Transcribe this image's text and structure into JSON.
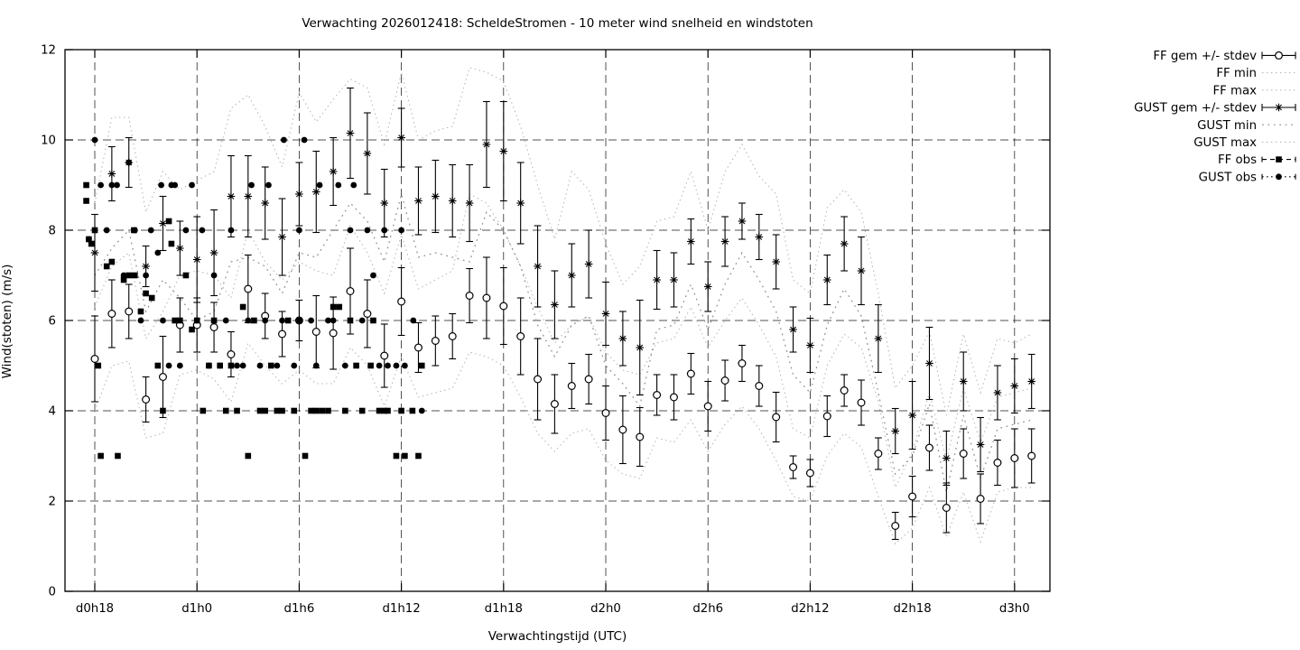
{
  "chart_data": {
    "type": "line",
    "subtype": "errorbar-forecast-plume-with-observations",
    "title": "Verwachting 2026012418: ScheldeStromen - 10 meter wind snelheid en windstoten",
    "xlabel": "Verwachtingstijd (UTC)",
    "ylabel": "Wind(stoten) (m/s)",
    "ylim": [
      0,
      12
    ],
    "yticks": [
      0,
      2,
      4,
      6,
      8,
      10,
      12
    ],
    "xtick_hours": [
      0,
      6,
      12,
      18,
      24,
      30,
      36,
      42,
      48,
      54
    ],
    "xtick_labels": [
      "d0h18",
      "d1h0",
      "d1h6",
      "d1h12",
      "d1h18",
      "d2h0",
      "d2h6",
      "d2h12",
      "d2h18",
      "d3h0"
    ],
    "grid": true,
    "legend_position": "outside-top-right",
    "colors": {
      "foreground": "#000000",
      "envelope_light": "#b5b5b5",
      "envelope_dark": "#8c8c8c"
    },
    "legend": [
      {
        "label": "FF gem +/- stdev",
        "style": "errorbar-open-circle"
      },
      {
        "label": "FF min",
        "style": "dots-light"
      },
      {
        "label": "FF max",
        "style": "dots-light"
      },
      {
        "label": "GUST gem +/- stdev",
        "style": "errorbar-star"
      },
      {
        "label": "GUST min",
        "style": "dots-dark"
      },
      {
        "label": "GUST max",
        "style": "dots-light"
      },
      {
        "label": "FF obs",
        "style": "dash-square"
      },
      {
        "label": "GUST obs",
        "style": "dots-circle"
      }
    ],
    "hours_start": 0,
    "hours_step": 1,
    "series": {
      "ff_gem": {
        "mean": [
          5.15,
          6.15,
          6.2,
          4.25,
          4.75,
          5.9,
          5.9,
          5.85,
          5.25,
          6.7,
          6.1,
          5.7,
          6.0,
          5.75,
          5.72,
          6.65,
          6.15,
          5.22,
          6.42,
          5.4,
          5.55,
          5.65,
          6.55,
          6.5,
          6.32,
          5.65,
          4.7,
          4.15,
          4.55,
          4.7,
          3.95,
          3.58,
          3.42,
          4.35,
          4.3,
          4.82,
          4.1,
          4.67,
          5.05,
          4.55,
          3.86,
          2.75,
          2.62,
          3.88,
          4.45,
          4.18,
          3.05,
          1.45,
          2.1,
          3.18,
          1.85,
          3.05,
          2.05,
          2.85,
          2.95,
          3.0
        ],
        "stdev": [
          0.95,
          0.75,
          0.6,
          0.5,
          0.9,
          0.6,
          0.6,
          0.55,
          0.5,
          0.75,
          0.5,
          0.5,
          0.45,
          0.8,
          0.8,
          0.95,
          0.75,
          0.7,
          0.75,
          0.55,
          0.55,
          0.5,
          0.6,
          0.9,
          0.85,
          0.85,
          0.9,
          0.65,
          0.5,
          0.55,
          0.6,
          0.75,
          0.65,
          0.45,
          0.5,
          0.45,
          0.55,
          0.45,
          0.4,
          0.45,
          0.55,
          0.25,
          0.3,
          0.45,
          0.35,
          0.5,
          0.35,
          0.3,
          0.45,
          0.5,
          0.55,
          0.55,
          0.55,
          0.5,
          0.65,
          0.6
        ]
      },
      "gust_gem": {
        "mean": [
          7.5,
          9.25,
          9.5,
          7.2,
          8.15,
          7.6,
          7.35,
          7.5,
          8.75,
          8.75,
          8.6,
          7.85,
          8.8,
          8.85,
          9.3,
          10.15,
          9.7,
          8.6,
          10.05,
          8.65,
          8.75,
          8.65,
          8.6,
          9.9,
          9.75,
          8.6,
          7.2,
          6.35,
          7.0,
          7.25,
          6.15,
          5.6,
          5.4,
          6.9,
          6.9,
          7.75,
          6.75,
          7.75,
          8.2,
          7.85,
          7.3,
          5.8,
          5.45,
          6.9,
          7.7,
          7.1,
          5.6,
          3.55,
          3.9,
          5.05,
          2.95,
          4.65,
          3.25,
          4.4,
          4.55,
          4.65
        ],
        "stdev": [
          0.85,
          0.6,
          0.55,
          0.45,
          0.6,
          0.6,
          0.95,
          0.95,
          0.9,
          0.9,
          0.8,
          0.85,
          0.7,
          0.9,
          0.75,
          1.0,
          0.9,
          0.75,
          0.65,
          0.75,
          0.8,
          0.8,
          0.85,
          0.95,
          1.1,
          0.9,
          0.9,
          0.75,
          0.7,
          0.75,
          0.7,
          0.6,
          1.05,
          0.65,
          0.6,
          0.5,
          0.55,
          0.55,
          0.4,
          0.5,
          0.6,
          0.5,
          0.6,
          0.55,
          0.6,
          0.75,
          0.75,
          0.5,
          0.75,
          0.8,
          0.6,
          0.65,
          0.6,
          0.6,
          0.6,
          0.6
        ]
      },
      "ff_min": [
        4.0,
        5.0,
        5.1,
        3.4,
        3.5,
        4.8,
        4.9,
        4.7,
        4.2,
        5.5,
        5.0,
        4.6,
        4.9,
        4.6,
        4.6,
        5.4,
        5.0,
        4.1,
        5.2,
        4.3,
        4.4,
        4.5,
        5.3,
        5.2,
        5.0,
        4.3,
        3.5,
        3.1,
        3.5,
        3.6,
        2.9,
        2.6,
        2.5,
        3.4,
        3.3,
        3.8,
        3.1,
        3.7,
        4.1,
        3.6,
        2.9,
        2.1,
        2.0,
        3.0,
        3.5,
        3.2,
        2.1,
        1.05,
        1.4,
        2.3,
        1.2,
        2.2,
        1.1,
        2.2,
        2.3,
        2.3
      ],
      "ff_max": [
        6.3,
        7.2,
        7.5,
        5.6,
        6.2,
        7.0,
        7.1,
        7.0,
        6.5,
        8.0,
        7.3,
        6.9,
        7.3,
        7.1,
        7.0,
        8.1,
        7.5,
        6.6,
        7.9,
        6.7,
        6.9,
        7.1,
        8.8,
        8.6,
        8.0,
        7.2,
        6.3,
        5.5,
        5.9,
        6.1,
        5.3,
        4.9,
        4.8,
        5.5,
        5.6,
        6.3,
        5.4,
        6.0,
        6.5,
        5.9,
        5.2,
        3.6,
        3.4,
        5.0,
        5.7,
        5.4,
        4.2,
        2.3,
        3.1,
        4.4,
        2.9,
        4.5,
        3.3,
        4.3,
        4.4,
        4.5
      ],
      "gust_min": [
        7.0,
        7.6,
        8.0,
        6.2,
        6.9,
        6.5,
        6.0,
        6.2,
        7.3,
        7.4,
        7.2,
        6.6,
        7.5,
        7.4,
        8.0,
        8.6,
        8.2,
        7.3,
        8.8,
        7.4,
        7.5,
        7.4,
        7.3,
        8.4,
        8.0,
        7.2,
        5.9,
        5.2,
        5.9,
        6.1,
        5.0,
        4.6,
        4.1,
        5.8,
        5.9,
        6.8,
        5.8,
        6.8,
        7.5,
        6.9,
        6.2,
        4.8,
        4.4,
        5.9,
        6.7,
        6.1,
        4.4,
        2.6,
        3.0,
        4.15,
        2.2,
        3.9,
        2.5,
        3.6,
        3.7,
        3.8
      ],
      "gust_max": [
        8.6,
        10.5,
        10.5,
        8.4,
        9.3,
        8.9,
        9.1,
        9.3,
        10.7,
        11.0,
        10.3,
        9.4,
        11.05,
        10.4,
        10.9,
        11.35,
        11.15,
        9.9,
        11.5,
        10.0,
        10.2,
        10.3,
        11.6,
        11.5,
        11.3,
        10.3,
        9.0,
        7.8,
        9.3,
        8.9,
        7.7,
        6.8,
        7.2,
        8.2,
        8.3,
        9.3,
        8.0,
        9.3,
        9.9,
        9.2,
        8.8,
        6.9,
        6.6,
        8.5,
        8.9,
        8.4,
        6.6,
        4.5,
        5.0,
        5.75,
        3.9,
        5.7,
        4.4,
        5.6,
        5.5,
        5.7
      ],
      "ff_obs": [
        [
          -0.5,
          9
        ],
        [
          -0.5,
          8.65
        ],
        [
          -0.35,
          7.8
        ],
        [
          -0.2,
          7.7
        ],
        [
          0,
          8
        ],
        [
          0.2,
          5
        ],
        [
          0.35,
          3
        ],
        [
          0.7,
          7.2
        ],
        [
          1,
          7.3
        ],
        [
          1.35,
          3
        ],
        [
          1.7,
          6.9
        ],
        [
          2,
          7
        ],
        [
          2.3,
          8
        ],
        [
          2.35,
          7
        ],
        [
          2.7,
          6.2
        ],
        [
          3,
          6.6
        ],
        [
          3.35,
          6.5
        ],
        [
          3.7,
          5
        ],
        [
          4,
          4
        ],
        [
          4.35,
          8.2
        ],
        [
          4.5,
          7.7
        ],
        [
          4.7,
          6
        ],
        [
          5,
          6
        ],
        [
          5.35,
          7
        ],
        [
          5.7,
          5.8
        ],
        [
          6,
          6
        ],
        [
          6.35,
          4
        ],
        [
          6.7,
          5
        ],
        [
          7,
          6
        ],
        [
          7.35,
          5
        ],
        [
          7.7,
          4
        ],
        [
          8,
          5
        ],
        [
          8.35,
          4
        ],
        [
          8.7,
          6.3
        ],
        [
          9,
          3
        ],
        [
          9.35,
          6
        ],
        [
          9.7,
          4
        ],
        [
          10,
          4
        ],
        [
          10.35,
          5
        ],
        [
          10.7,
          4
        ],
        [
          11,
          4
        ],
        [
          11.35,
          6
        ],
        [
          11.7,
          4
        ],
        [
          12,
          6
        ],
        [
          12.35,
          3
        ],
        [
          12.7,
          4
        ],
        [
          13,
          4
        ],
        [
          13.35,
          4
        ],
        [
          13.7,
          4
        ],
        [
          14,
          6.3
        ],
        [
          14.35,
          6.3
        ],
        [
          14.7,
          4
        ],
        [
          15,
          6
        ],
        [
          15.35,
          5
        ],
        [
          15.7,
          4
        ],
        [
          16.2,
          5
        ],
        [
          16.35,
          6
        ],
        [
          16.7,
          4
        ],
        [
          17,
          4
        ],
        [
          17.2,
          4
        ],
        [
          17.7,
          3
        ],
        [
          18,
          4
        ],
        [
          18.2,
          3
        ],
        [
          18.65,
          4
        ],
        [
          19,
          3
        ],
        [
          19.2,
          5
        ]
      ],
      "gust_obs": [
        [
          -0.35,
          7.8
        ],
        [
          0,
          10
        ],
        [
          0.35,
          9
        ],
        [
          0.7,
          8
        ],
        [
          1,
          9
        ],
        [
          1.3,
          9
        ],
        [
          1.7,
          7
        ],
        [
          2,
          9.5
        ],
        [
          2.35,
          8
        ],
        [
          2.7,
          6
        ],
        [
          3,
          7
        ],
        [
          3.3,
          8
        ],
        [
          3.7,
          7.5
        ],
        [
          3.9,
          9
        ],
        [
          4,
          6
        ],
        [
          4.35,
          5
        ],
        [
          4.5,
          9
        ],
        [
          4.7,
          9
        ],
        [
          5,
          5
        ],
        [
          5.35,
          8
        ],
        [
          5.7,
          9
        ],
        [
          6,
          6
        ],
        [
          6.3,
          8
        ],
        [
          6.7,
          5
        ],
        [
          7,
          7
        ],
        [
          7.35,
          5
        ],
        [
          7.7,
          6
        ],
        [
          8,
          8
        ],
        [
          8.35,
          5
        ],
        [
          8.7,
          5
        ],
        [
          9,
          6
        ],
        [
          9.2,
          9
        ],
        [
          9.7,
          5
        ],
        [
          10,
          6
        ],
        [
          10.2,
          9
        ],
        [
          10.7,
          5
        ],
        [
          11,
          6
        ],
        [
          11.1,
          10
        ],
        [
          11.7,
          5
        ],
        [
          12,
          8
        ],
        [
          12.3,
          10
        ],
        [
          12.7,
          6
        ],
        [
          13,
          5
        ],
        [
          13.2,
          9
        ],
        [
          13.7,
          6
        ],
        [
          14,
          6
        ],
        [
          14.3,
          9
        ],
        [
          14.7,
          5
        ],
        [
          15,
          8
        ],
        [
          15.2,
          9
        ],
        [
          15.7,
          6
        ],
        [
          16,
          8
        ],
        [
          16.35,
          7
        ],
        [
          16.7,
          5
        ],
        [
          17,
          8
        ],
        [
          17.2,
          5
        ],
        [
          17.7,
          5
        ],
        [
          18,
          8
        ],
        [
          18.2,
          5
        ],
        [
          18.7,
          6
        ],
        [
          19.2,
          4
        ]
      ]
    }
  }
}
